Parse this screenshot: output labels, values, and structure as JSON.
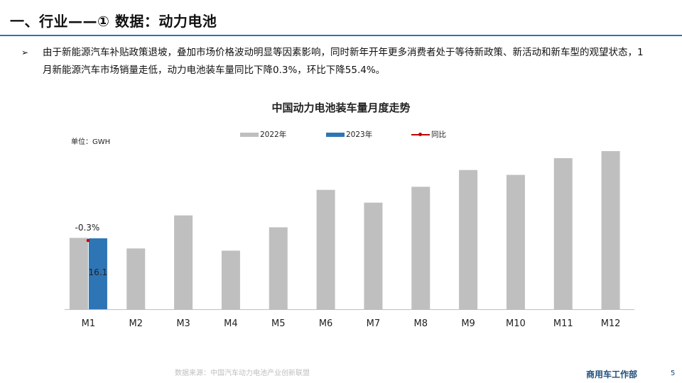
{
  "slide": {
    "title": "一、行业——① 数据：动力电池",
    "bullet_text": "由于新能源汽车补贴政策退坡，叠加市场价格波动明显等因素影响，同时新年开年更多消费者处于等待新政策、新活动和新车型的观望状态，1月新能源汽车市场销量走低，动力电池装车量同比下降0.3%，环比下降55.4%。",
    "source": "数据来源：中国汽车动力电池产业创新联盟",
    "department": "商用车工作部",
    "page_number": "5"
  },
  "colors": {
    "title_rule": "#2e74b5",
    "series_2022": "#bfbfbf",
    "series_2023": "#2e75b6",
    "yoy_line": "#c00000"
  },
  "chart_data": {
    "type": "bar",
    "title": "中国动力电池装车量月度走势",
    "unit_label": "单位：GWH",
    "categories": [
      "M1",
      "M2",
      "M3",
      "M4",
      "M5",
      "M6",
      "M7",
      "M8",
      "M9",
      "M10",
      "M11",
      "M12"
    ],
    "series": [
      {
        "name": "2022年",
        "values": [
          16.2,
          13.8,
          21.3,
          13.3,
          18.6,
          27.1,
          24.2,
          27.8,
          31.6,
          30.5,
          34.3,
          35.9
        ]
      },
      {
        "name": "2023年",
        "values": [
          16.1,
          null,
          null,
          null,
          null,
          null,
          null,
          null,
          null,
          null,
          null,
          null
        ]
      }
    ],
    "line_series": {
      "name": "同比",
      "values": [
        "-0.3%",
        null,
        null,
        null,
        null,
        null,
        null,
        null,
        null,
        null,
        null,
        null
      ]
    },
    "data_labels": {
      "2023年": {
        "M1": "16.1"
      },
      "同比": {
        "M1": "-0.3%"
      }
    },
    "ylim": [
      0,
      38
    ],
    "legend_position": "top-center",
    "grid": false
  }
}
